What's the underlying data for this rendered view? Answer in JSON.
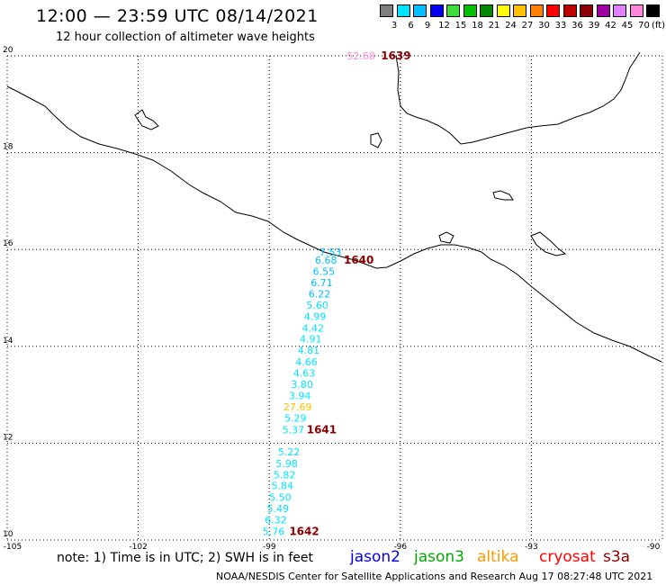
{
  "header": {
    "title": "12:00 — 23:59 UTC 08/14/2021",
    "subtitle": "12 hour collection of altimeter wave heights"
  },
  "legend": {
    "unit": "(ft)",
    "swatches": [
      {
        "label": "3",
        "color": "#7f7f7f"
      },
      {
        "label": "6",
        "color": "#00e5ff"
      },
      {
        "label": "9",
        "color": "#00bfff"
      },
      {
        "label": "12",
        "color": "#0000ee"
      },
      {
        "label": "15",
        "color": "#3ddc3d"
      },
      {
        "label": "18",
        "color": "#00c000"
      },
      {
        "label": "21",
        "color": "#008800"
      },
      {
        "label": "24",
        "color": "#ffff00"
      },
      {
        "label": "27",
        "color": "#ffc000"
      },
      {
        "label": "30",
        "color": "#ff8000"
      },
      {
        "label": "33",
        "color": "#ff0000"
      },
      {
        "label": "36",
        "color": "#c00000"
      },
      {
        "label": "39",
        "color": "#8b0000"
      },
      {
        "label": "42",
        "color": "#a000a0"
      },
      {
        "label": "45",
        "color": "#e080ff"
      },
      {
        "label": "70",
        "color": "#ff88dd"
      },
      {
        "label": "",
        "color": "#000000"
      }
    ]
  },
  "map": {
    "lat_labels": [
      "20",
      "18",
      "16",
      "14",
      "12",
      "10"
    ],
    "lon_labels": [
      "-105",
      "-102",
      "-99",
      "-96",
      "-93",
      "-90"
    ],
    "track_values": [
      {
        "text": "52.68",
        "color": "#ff88dd",
        "lon": -96.9,
        "lat": 20.0
      },
      {
        "text": "7.53",
        "color": "#00bfff",
        "lon": -97.6,
        "lat": 15.95
      },
      {
        "text": "6.68",
        "color": "#00bfff",
        "lon": -97.7,
        "lat": 15.78
      },
      {
        "text": "6.55",
        "color": "#00bfff",
        "lon": -97.75,
        "lat": 15.55
      },
      {
        "text": "6.71",
        "color": "#00bfff",
        "lon": -97.8,
        "lat": 15.32
      },
      {
        "text": "6.22",
        "color": "#00bfff",
        "lon": -97.85,
        "lat": 15.08
      },
      {
        "text": "5.60",
        "color": "#00e5ff",
        "lon": -97.9,
        "lat": 14.85
      },
      {
        "text": "4.99",
        "color": "#00e5ff",
        "lon": -97.95,
        "lat": 14.62
      },
      {
        "text": "4.42",
        "color": "#00e5ff",
        "lon": -98.0,
        "lat": 14.38
      },
      {
        "text": "4.91",
        "color": "#00e5ff",
        "lon": -98.05,
        "lat": 14.15
      },
      {
        "text": "4.81",
        "color": "#00e5ff",
        "lon": -98.1,
        "lat": 13.92
      },
      {
        "text": "4.66",
        "color": "#00e5ff",
        "lon": -98.15,
        "lat": 13.68
      },
      {
        "text": "4.63",
        "color": "#00e5ff",
        "lon": -98.2,
        "lat": 13.45
      },
      {
        "text": "3.80",
        "color": "#00e5ff",
        "lon": -98.25,
        "lat": 13.22
      },
      {
        "text": "3.94",
        "color": "#00e5ff",
        "lon": -98.3,
        "lat": 12.98
      },
      {
        "text": "27.69",
        "color": "#ffc000",
        "lon": -98.35,
        "lat": 12.75
      },
      {
        "text": "5.29",
        "color": "#00e5ff",
        "lon": -98.4,
        "lat": 12.52
      },
      {
        "text": "5.37",
        "color": "#00e5ff",
        "lon": -98.45,
        "lat": 12.28
      },
      {
        "text": "5.22",
        "color": "#00e5ff",
        "lon": -98.55,
        "lat": 11.82
      },
      {
        "text": "5.98",
        "color": "#00e5ff",
        "lon": -98.6,
        "lat": 11.58
      },
      {
        "text": "5.82",
        "color": "#00e5ff",
        "lon": -98.65,
        "lat": 11.35
      },
      {
        "text": "5.84",
        "color": "#00e5ff",
        "lon": -98.7,
        "lat": 11.12
      },
      {
        "text": "5.50",
        "color": "#00e5ff",
        "lon": -98.75,
        "lat": 10.88
      },
      {
        "text": "5.49",
        "color": "#00e5ff",
        "lon": -98.8,
        "lat": 10.65
      },
      {
        "text": "6.32",
        "color": "#00e5ff",
        "lon": -98.85,
        "lat": 10.42
      },
      {
        "text": "5.76",
        "color": "#00e5ff",
        "lon": -98.9,
        "lat": 10.18
      }
    ],
    "pass_times": [
      {
        "text": "1639",
        "lon": -96.1,
        "lat": 20.0
      },
      {
        "text": "1640",
        "lon": -96.95,
        "lat": 15.78
      },
      {
        "text": "1641",
        "lon": -97.8,
        "lat": 12.28
      },
      {
        "text": "1642",
        "lon": -98.2,
        "lat": 10.18
      }
    ]
  },
  "footer": {
    "note": "note: 1) Time is in UTC; 2) SWH is in feet",
    "satellites": [
      {
        "text": "jason2",
        "color": "#0000ee"
      },
      {
        "text": "jason3",
        "color": "#00aa00"
      },
      {
        "text": "altika",
        "color": "#ff9900"
      },
      {
        "text": "cryosat",
        "color": "#ff0000"
      },
      {
        "text": "s3a",
        "color": "#8b0000"
      }
    ],
    "credit": "NOAA/NESDIS Center for Satellite Applications and Research    Aug 17 08:27:48 UTC 2021"
  }
}
